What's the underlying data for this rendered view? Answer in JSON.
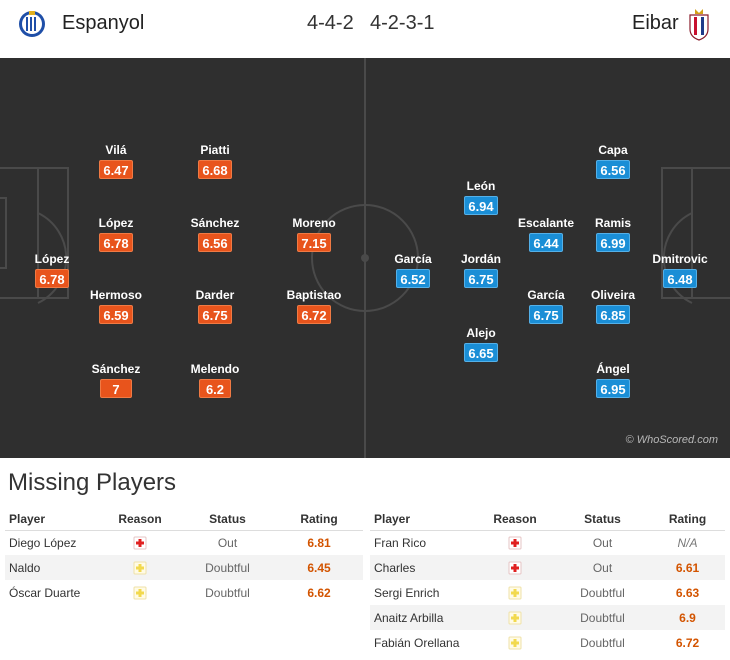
{
  "header": {
    "home_team": "Espanyol",
    "away_team": "Eibar",
    "home_formation": "4-4-2",
    "away_formation": "4-2-3-1"
  },
  "colors": {
    "pitch": "#2f2f2f",
    "home_rating": "#e8541c",
    "away_rating": "#1a8ed6",
    "injury_icon": "#e02020",
    "doubtful_icon": "#f2d94e"
  },
  "pitch": {
    "watermark": "© WhoScored.com",
    "home_players": [
      {
        "name": "López",
        "rating": "6.78"
      },
      {
        "name": "Vilá",
        "rating": "6.47"
      },
      {
        "name": "López",
        "rating": "6.78"
      },
      {
        "name": "Hermoso",
        "rating": "6.59"
      },
      {
        "name": "Sánchez",
        "rating": "7"
      },
      {
        "name": "Piatti",
        "rating": "6.68"
      },
      {
        "name": "Sánchez",
        "rating": "6.56"
      },
      {
        "name": "Darder",
        "rating": "6.75"
      },
      {
        "name": "Melendo",
        "rating": "6.2"
      },
      {
        "name": "Moreno",
        "rating": "7.15"
      },
      {
        "name": "Baptistao",
        "rating": "6.72"
      }
    ],
    "away_players": [
      {
        "name": "Dmitrovic",
        "rating": "6.48"
      },
      {
        "name": "Capa",
        "rating": "6.56"
      },
      {
        "name": "Ramis",
        "rating": "6.99"
      },
      {
        "name": "Oliveira",
        "rating": "6.85"
      },
      {
        "name": "Ángel",
        "rating": "6.95"
      },
      {
        "name": "Escalante",
        "rating": "6.44"
      },
      {
        "name": "García",
        "rating": "6.75"
      },
      {
        "name": "León",
        "rating": "6.94"
      },
      {
        "name": "Jordán",
        "rating": "6.75"
      },
      {
        "name": "Alejo",
        "rating": "6.65"
      },
      {
        "name": "García",
        "rating": "6.52"
      }
    ]
  },
  "missing": {
    "title": "Missing Players",
    "headers": {
      "player": "Player",
      "reason": "Reason",
      "status": "Status",
      "rating": "Rating"
    },
    "home": [
      {
        "player": "Diego López",
        "reason_icon": "injury-icon",
        "status": "Out",
        "rating": "6.81"
      },
      {
        "player": "Naldo",
        "reason_icon": "doubtful-icon",
        "status": "Doubtful",
        "rating": "6.45"
      },
      {
        "player": "Óscar Duarte",
        "reason_icon": "doubtful-icon",
        "status": "Doubtful",
        "rating": "6.62"
      }
    ],
    "away": [
      {
        "player": "Fran Rico",
        "reason_icon": "injury-icon",
        "status": "Out",
        "rating": "N/A"
      },
      {
        "player": "Charles",
        "reason_icon": "injury-icon",
        "status": "Out",
        "rating": "6.61"
      },
      {
        "player": "Sergi Enrich",
        "reason_icon": "doubtful-icon",
        "status": "Doubtful",
        "rating": "6.63"
      },
      {
        "player": "Anaitz Arbilla",
        "reason_icon": "doubtful-icon",
        "status": "Doubtful",
        "rating": "6.9"
      },
      {
        "player": "Fabián Orellana",
        "reason_icon": "doubtful-icon",
        "status": "Doubtful",
        "rating": "6.72"
      }
    ]
  }
}
